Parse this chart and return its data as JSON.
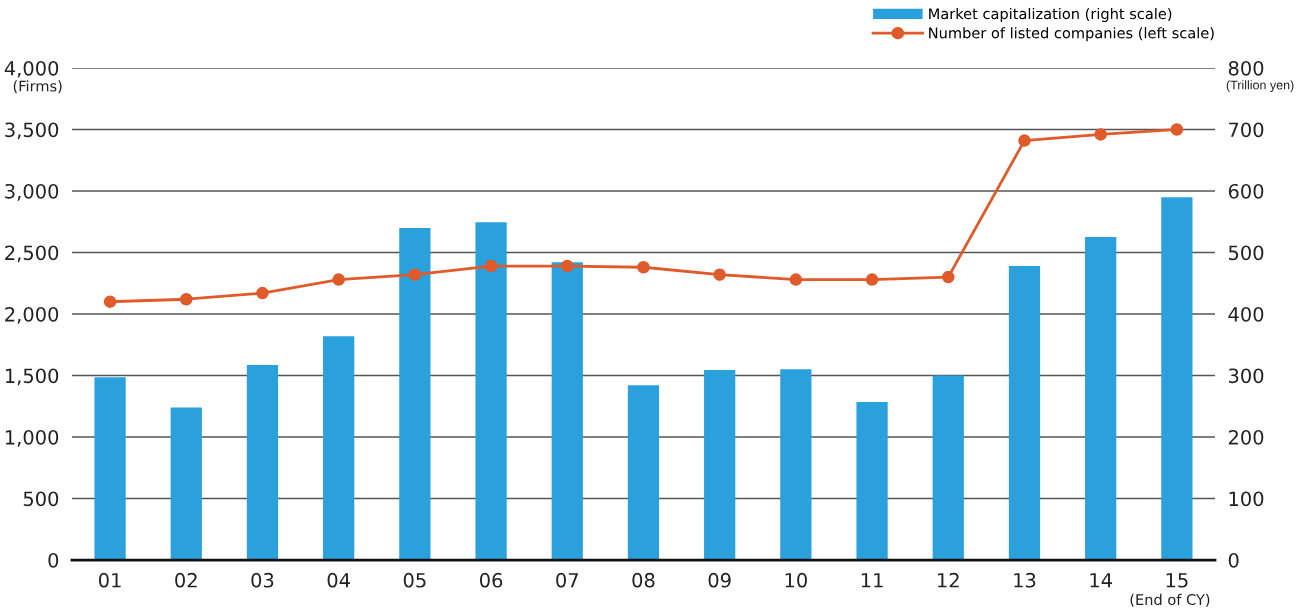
{
  "chart_data": {
    "type": "bar",
    "categories": [
      "01",
      "02",
      "03",
      "04",
      "05",
      "06",
      "07",
      "08",
      "09",
      "10",
      "11",
      "12",
      "13",
      "14",
      "15"
    ],
    "series": [
      {
        "name": "Market capitalization (right scale)",
        "axis": "y2",
        "color": "#2aa1dc",
        "values": [
          297,
          248,
          317,
          364,
          540,
          549,
          484,
          284,
          309,
          310,
          257,
          300,
          478,
          525,
          590
        ]
      },
      {
        "name": "Number of listed companies (left scale)",
        "type": "line",
        "axis": "y",
        "color": "#e05a2a",
        "marker": "circle",
        "values": [
          2100,
          2120,
          2170,
          2280,
          2320,
          2390,
          2390,
          2380,
          2320,
          2280,
          2280,
          2300,
          3410,
          3460,
          3500
        ]
      }
    ],
    "ylim": [
      0,
      4000
    ],
    "yticks": [
      0,
      500,
      {
        "value": 1000,
        "label": "1,000"
      },
      {
        "value": 1500,
        "label": "1,500"
      },
      {
        "value": 2000,
        "label": "2,000"
      },
      {
        "value": 2500,
        "label": "2,500"
      },
      {
        "value": 3000,
        "label": "3,000"
      },
      {
        "value": 3500,
        "label": "3,500"
      },
      {
        "value": 4000,
        "label": "4,000"
      }
    ],
    "y2lim": [
      0,
      800
    ],
    "y2ticks": [
      0,
      100,
      200,
      300,
      400,
      500,
      600,
      700,
      800
    ],
    "ylabel": "(Firms)",
    "y2label": "(Trillion yen)",
    "xlabel": "(End of CY)",
    "grid": "y",
    "legend": "top right"
  }
}
